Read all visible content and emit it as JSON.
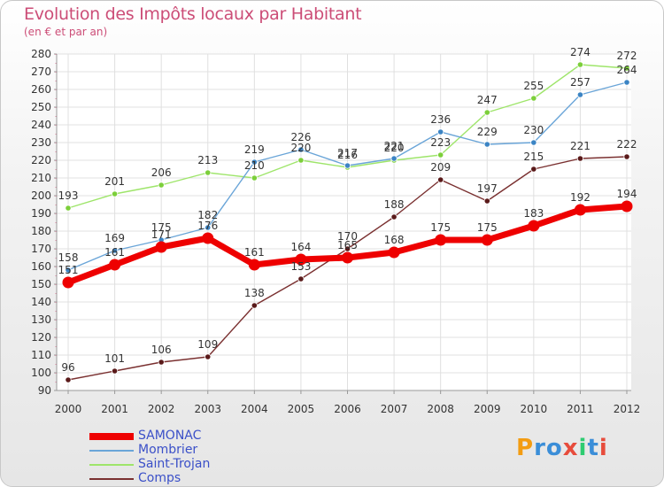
{
  "header": {
    "title": "Evolution des Impôts locaux par Habitant",
    "subtitle": "(en € et par an)"
  },
  "logo": {
    "letters": [
      "P",
      "r",
      "o",
      "x",
      "i",
      "t",
      "i"
    ],
    "colors": [
      "#f39c12",
      "#3b8ed8",
      "#3b8ed8",
      "#e74c3c",
      "#2ecc71",
      "#3b8ed8",
      "#e74c3c"
    ]
  },
  "chart_data": {
    "type": "line",
    "title": "Evolution des Impôts locaux par Habitant",
    "subtitle": "(en € et par an)",
    "xlabel": "",
    "ylabel": "",
    "ylim": [
      90,
      280
    ],
    "ytick_step": 10,
    "grid": true,
    "legend_position": "bottom-left",
    "categories": [
      "2000",
      "2001",
      "2002",
      "2003",
      "2004",
      "2005",
      "2006",
      "2007",
      "2008",
      "2009",
      "2010",
      "2011",
      "2012"
    ],
    "series": [
      {
        "name": "SAMONAC",
        "color": "#ee0000",
        "width": "thick",
        "values": [
          151,
          161,
          171,
          176,
          161,
          164,
          165,
          168,
          175,
          175,
          183,
          192,
          194
        ]
      },
      {
        "name": "Mombrier",
        "color": "#6aa5d8",
        "marker": "#3b84c4",
        "values": [
          158,
          169,
          175,
          182,
          219,
          226,
          217,
          221,
          236,
          229,
          230,
          257,
          264
        ]
      },
      {
        "name": "Saint-Trojan",
        "color": "#9ee56a",
        "marker": "#7ccf3a",
        "values": [
          193,
          201,
          206,
          213,
          210,
          220,
          216,
          220,
          223,
          247,
          255,
          274,
          272
        ]
      },
      {
        "name": "Comps",
        "color": "#7a3030",
        "marker": "#5a1a1a",
        "values": [
          96,
          101,
          106,
          109,
          138,
          153,
          170,
          188,
          209,
          197,
          215,
          221,
          222
        ]
      }
    ]
  }
}
